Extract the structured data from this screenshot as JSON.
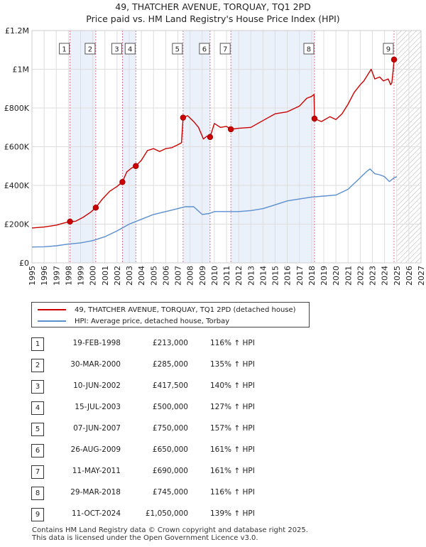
{
  "header": {
    "title": "49, THATCHER AVENUE, TORQUAY, TQ1 2PD",
    "subtitle": "Price paid vs. HM Land Registry's House Price Index (HPI)"
  },
  "colors": {
    "price_line": "#cc0000",
    "hpi_line": "#5b8fd0",
    "shade": "#dbe6f5",
    "marker_line": "#e05070",
    "grid": "#dddddd"
  },
  "legend": {
    "items": [
      {
        "label": "49, THATCHER AVENUE, TORQUAY, TQ1 2PD (detached house)",
        "color": "#cc0000"
      },
      {
        "label": "HPI: Average price, detached house, Torbay",
        "color": "#5b8fd0"
      }
    ]
  },
  "sales": [
    {
      "num": "1",
      "date": "19-FEB-1998",
      "price": "£213,000",
      "hpi": "116% ↑ HPI"
    },
    {
      "num": "2",
      "date": "30-MAR-2000",
      "price": "£285,000",
      "hpi": "135% ↑ HPI"
    },
    {
      "num": "3",
      "date": "10-JUN-2002",
      "price": "£417,500",
      "hpi": "140% ↑ HPI"
    },
    {
      "num": "4",
      "date": "15-JUL-2003",
      "price": "£500,000",
      "hpi": "127% ↑ HPI"
    },
    {
      "num": "5",
      "date": "07-JUN-2007",
      "price": "£750,000",
      "hpi": "157% ↑ HPI"
    },
    {
      "num": "6",
      "date": "26-AUG-2009",
      "price": "£650,000",
      "hpi": "161% ↑ HPI"
    },
    {
      "num": "7",
      "date": "11-MAY-2011",
      "price": "£690,000",
      "hpi": "161% ↑ HPI"
    },
    {
      "num": "8",
      "date": "29-MAR-2018",
      "price": "£745,000",
      "hpi": "116% ↑ HPI"
    },
    {
      "num": "9",
      "date": "11-OCT-2024",
      "price": "£1,050,000",
      "hpi": "139% ↑ HPI"
    }
  ],
  "footer": {
    "line1": "Contains HM Land Registry data © Crown copyright and database right 2025.",
    "line2": "This data is licensed under the Open Government Licence v3.0."
  },
  "chart_data": {
    "type": "line",
    "title": "49, THATCHER AVENUE, TORQUAY, TQ1 2PD",
    "subtitle": "Price paid vs. HM Land Registry's House Price Index (HPI)",
    "xlim": [
      1995,
      2027
    ],
    "ylim": [
      0,
      1200000
    ],
    "x_ticks": [
      1995,
      1996,
      1997,
      1998,
      1999,
      2000,
      2001,
      2002,
      2003,
      2004,
      2005,
      2006,
      2007,
      2008,
      2009,
      2010,
      2011,
      2012,
      2013,
      2014,
      2015,
      2016,
      2017,
      2018,
      2019,
      2020,
      2021,
      2022,
      2023,
      2024,
      2025,
      2026,
      2027
    ],
    "y_ticks": [
      {
        "value": 0,
        "label": "£0"
      },
      {
        "value": 200000,
        "label": "£200K"
      },
      {
        "value": 400000,
        "label": "£400K"
      },
      {
        "value": 600000,
        "label": "£600K"
      },
      {
        "value": 800000,
        "label": "£800K"
      },
      {
        "value": 1000000,
        "label": "£1M"
      },
      {
        "value": 1200000,
        "label": "£1.2M"
      }
    ],
    "grid": true,
    "forecast_from": 2025,
    "shaded_periods": [
      [
        1998.13,
        2000.25
      ],
      [
        2002.44,
        2003.54
      ],
      [
        2007.43,
        2009.65
      ],
      [
        2011.36,
        2018.24
      ]
    ],
    "series": [
      {
        "name": "49, THATCHER AVENUE, TORQUAY, TQ1 2PD (detached house)",
        "x": [
          1995.0,
          1996.0,
          1997.0,
          1997.6,
          1998.13,
          1998.6,
          1999.2,
          1999.8,
          2000.25,
          2000.8,
          2001.4,
          2002.0,
          2002.44,
          2002.8,
          2003.2,
          2003.54,
          2004.0,
          2004.5,
          2005.0,
          2005.5,
          2006.0,
          2006.5,
          2007.0,
          2007.3,
          2007.43,
          2007.8,
          2008.3,
          2008.7,
          2009.1,
          2009.4,
          2009.65,
          2010.0,
          2010.5,
          2011.0,
          2011.36,
          2012.0,
          2013.0,
          2014.0,
          2015.0,
          2016.0,
          2017.0,
          2017.6,
          2018.0,
          2018.2,
          2018.24,
          2018.8,
          2019.5,
          2020.0,
          2020.5,
          2021.0,
          2021.5,
          2022.0,
          2022.3,
          2022.6,
          2022.9,
          2023.2,
          2023.6,
          2023.9,
          2024.3,
          2024.5,
          2024.6,
          2024.7,
          2024.78,
          2025.0
        ],
        "y": [
          180000,
          185000,
          195000,
          205000,
          213000,
          215000,
          235000,
          260000,
          285000,
          330000,
          370000,
          395000,
          417500,
          470000,
          490000,
          500000,
          530000,
          580000,
          590000,
          575000,
          590000,
          595000,
          610000,
          620000,
          750000,
          760000,
          730000,
          700000,
          640000,
          655000,
          650000,
          720000,
          700000,
          705000,
          690000,
          695000,
          700000,
          735000,
          770000,
          780000,
          810000,
          850000,
          860000,
          870000,
          745000,
          730000,
          755000,
          740000,
          770000,
          820000,
          880000,
          920000,
          940000,
          970000,
          1000000,
          950000,
          960000,
          940000,
          950000,
          920000,
          930000,
          990000,
          1050000,
          1050000
        ]
      },
      {
        "name": "HPI: Average price, detached house, Torbay",
        "x": [
          1995.0,
          1996.0,
          1997.0,
          1998.0,
          1999.0,
          2000.0,
          2001.0,
          2002.0,
          2003.0,
          2004.0,
          2005.0,
          2006.0,
          2007.0,
          2007.6,
          2008.3,
          2009.0,
          2009.6,
          2010.0,
          2011.0,
          2012.0,
          2013.0,
          2014.0,
          2015.0,
          2016.0,
          2017.0,
          2018.0,
          2019.0,
          2020.0,
          2020.5,
          2021.0,
          2021.5,
          2022.0,
          2022.5,
          2022.8,
          2023.2,
          2023.6,
          2024.0,
          2024.4,
          2024.8,
          2025.0
        ],
        "y": [
          82000,
          83000,
          88000,
          97000,
          103000,
          115000,
          135000,
          165000,
          200000,
          225000,
          250000,
          265000,
          280000,
          290000,
          290000,
          250000,
          255000,
          265000,
          265000,
          265000,
          270000,
          280000,
          300000,
          320000,
          330000,
          340000,
          345000,
          350000,
          365000,
          380000,
          410000,
          440000,
          470000,
          485000,
          460000,
          455000,
          445000,
          420000,
          440000,
          445000
        ]
      }
    ],
    "sale_markers": [
      {
        "label": "1",
        "x": 1998.13,
        "y": 213000
      },
      {
        "label": "2",
        "x": 2000.25,
        "y": 285000
      },
      {
        "label": "3",
        "x": 2002.44,
        "y": 417500
      },
      {
        "label": "4",
        "x": 2003.54,
        "y": 500000
      },
      {
        "label": "5",
        "x": 2007.43,
        "y": 750000
      },
      {
        "label": "6",
        "x": 2009.65,
        "y": 650000
      },
      {
        "label": "7",
        "x": 2011.36,
        "y": 690000
      },
      {
        "label": "8",
        "x": 2018.24,
        "y": 745000
      },
      {
        "label": "9",
        "x": 2024.78,
        "y": 1050000
      }
    ]
  }
}
